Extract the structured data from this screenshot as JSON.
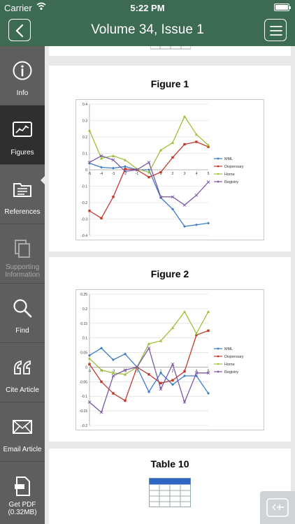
{
  "status": {
    "carrier": "Carrier",
    "time": "5:22 PM"
  },
  "nav": {
    "title": "Volume 34, Issue 1"
  },
  "sidebar": {
    "items": [
      {
        "label": "Info"
      },
      {
        "label": "Figures"
      },
      {
        "label": "References"
      },
      {
        "label": "Supporting Information"
      },
      {
        "label": "Find"
      },
      {
        "label": "Cite Article"
      },
      {
        "label": "Email Article"
      },
      {
        "label": "Get PDF (0.32MB)"
      }
    ]
  },
  "figures": [
    {
      "title": "Figure 1"
    },
    {
      "title": "Figure 2"
    }
  ],
  "table10": {
    "title": "Table 10"
  },
  "colors": {
    "mml": "#3d7cc9",
    "dispensary": "#c0392b",
    "home": "#9dc03a",
    "registry": "#7b57a8"
  },
  "chart_data": [
    {
      "type": "line",
      "x": [
        -5,
        -4,
        -3,
        -2,
        -1,
        0,
        1,
        2,
        3,
        4,
        5
      ],
      "ylim": [
        -0.4,
        0.4
      ],
      "yticks": [
        0.4,
        0.3,
        0.2,
        0.1,
        0,
        -0.1,
        -0.2,
        -0.3,
        -0.4
      ],
      "grid": true,
      "legend": "right",
      "series": [
        {
          "name": "MML",
          "color": "#3d7cc9",
          "values": [
            0.04,
            0.015,
            0.01,
            0.02,
            0.0,
            0.0,
            -0.17,
            -0.24,
            -0.345,
            -0.335,
            -0.325
          ]
        },
        {
          "name": "Dispensary",
          "color": "#c0392b",
          "values": [
            -0.25,
            -0.295,
            -0.165,
            0.005,
            0.0,
            -0.045,
            -0.015,
            0.075,
            0.155,
            0.17,
            0.14
          ]
        },
        {
          "name": "Home",
          "color": "#9dc03a",
          "values": [
            0.24,
            0.07,
            0.085,
            0.06,
            0.005,
            -0.015,
            0.12,
            0.165,
            0.325,
            0.215,
            0.15
          ]
        },
        {
          "name": "Registry",
          "color": "#7b57a8",
          "values": [
            0.045,
            0.085,
            0.06,
            -0.01,
            0.0,
            0.045,
            -0.165,
            -0.165,
            -0.215,
            -0.155,
            -0.075
          ]
        }
      ]
    },
    {
      "type": "line",
      "x": [
        -5,
        -4,
        -3,
        -2,
        -1,
        0,
        1,
        2,
        3,
        4,
        5
      ],
      "ylim": [
        -0.2,
        0.25
      ],
      "yticks": [
        0.25,
        0.2,
        0.15,
        0.1,
        0.05,
        0,
        -0.05,
        -0.1,
        -0.15,
        -0.2
      ],
      "grid": true,
      "legend": "right",
      "series": [
        {
          "name": "MML",
          "color": "#3d7cc9",
          "values": [
            0.04,
            0.065,
            0.025,
            0.045,
            0.0,
            -0.085,
            -0.02,
            -0.06,
            -0.03,
            -0.03,
            -0.09
          ]
        },
        {
          "name": "Dispensary",
          "color": "#c0392b",
          "values": [
            0.01,
            -0.05,
            -0.09,
            -0.115,
            0.0,
            -0.025,
            -0.055,
            -0.045,
            -0.015,
            0.11,
            0.125
          ]
        },
        {
          "name": "Home",
          "color": "#9dc03a",
          "values": [
            0.03,
            -0.01,
            -0.02,
            -0.025,
            0.0,
            0.08,
            0.09,
            0.135,
            0.19,
            0.115,
            0.19
          ]
        },
        {
          "name": "Registry",
          "color": "#7b57a8",
          "values": [
            -0.12,
            -0.155,
            -0.03,
            -0.01,
            0.0,
            0.065,
            -0.075,
            0.01,
            -0.12,
            -0.02,
            -0.02
          ]
        }
      ]
    }
  ]
}
